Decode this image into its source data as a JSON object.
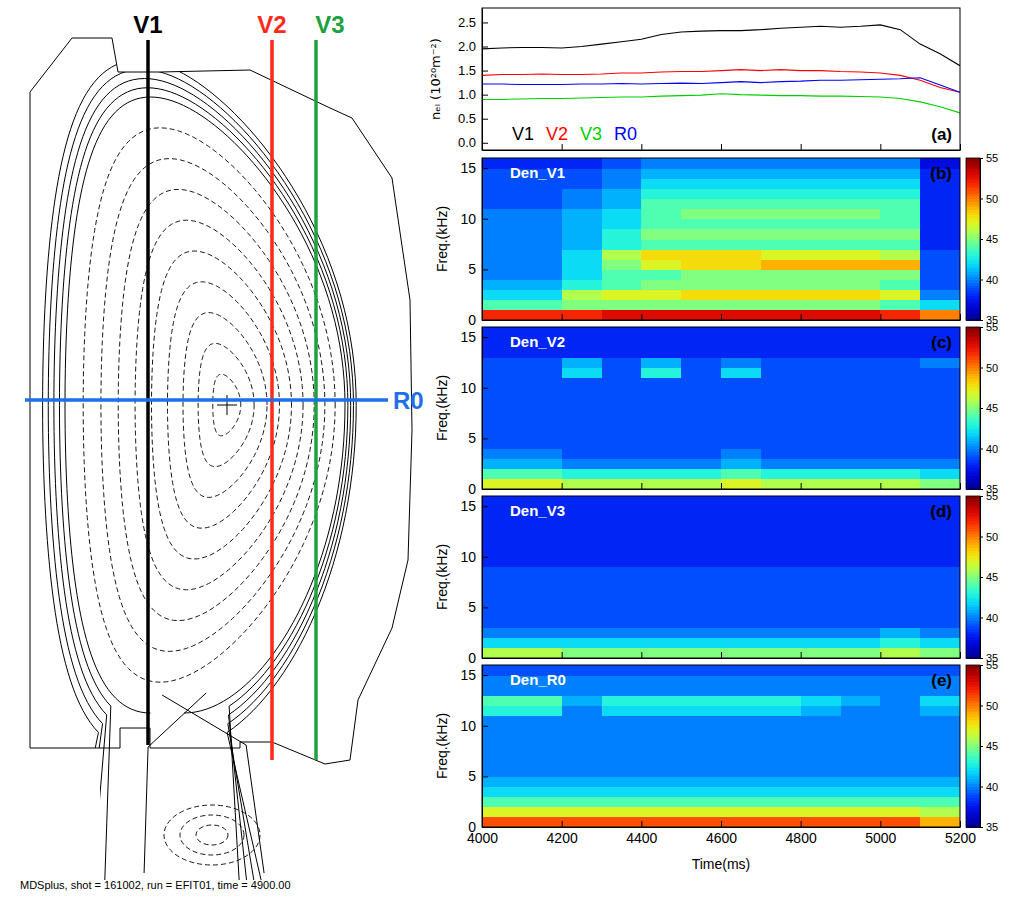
{
  "diagram": {
    "chords": [
      {
        "label": "V1",
        "color": "#000000"
      },
      {
        "label": "V2",
        "color": "#ff2a1a"
      },
      {
        "label": "V3",
        "color": "#20a040"
      },
      {
        "label": "R0",
        "color": "#1f6fe8"
      }
    ],
    "caption": "MDSplus, shot = 161002, run = EFIT01, time = 4900.00"
  },
  "chart_data": [
    {
      "type": "line",
      "panel_label": "(a)",
      "y_label": "nₑₗ (10²⁰m⁻²)",
      "x": [
        4000,
        4050,
        4100,
        4150,
        4200,
        4250,
        4300,
        4350,
        4400,
        4450,
        4500,
        4550,
        4600,
        4650,
        4700,
        4750,
        4800,
        4850,
        4900,
        4950,
        5000,
        5050,
        5100,
        5150,
        5200
      ],
      "xlim": [
        4000,
        5200
      ],
      "xticks": [
        4000,
        4200,
        4400,
        4600,
        4800,
        5000,
        5200
      ],
      "ylim": [
        -0.15,
        2.8
      ],
      "yticks": [
        {
          "value": 0,
          "label": "0.0"
        },
        0.5,
        {
          "value": 1,
          "label": "1.0"
        },
        1.5,
        {
          "value": 2,
          "label": "2.0"
        },
        2.5
      ],
      "tick_labels": "y",
      "legend": "lower left",
      "series": [
        {
          "name": "V1",
          "color": "#000000",
          "values": [
            1.95,
            1.97,
            1.98,
            1.98,
            1.97,
            2.0,
            2.05,
            2.1,
            2.15,
            2.25,
            2.3,
            2.32,
            2.33,
            2.33,
            2.35,
            2.38,
            2.4,
            2.42,
            2.4,
            2.42,
            2.45,
            2.35,
            2.05,
            1.85,
            1.6
          ]
        },
        {
          "name": "V2",
          "color": "#ff0000",
          "values": [
            1.4,
            1.42,
            1.42,
            1.43,
            1.42,
            1.42,
            1.43,
            1.45,
            1.45,
            1.47,
            1.48,
            1.48,
            1.5,
            1.52,
            1.5,
            1.52,
            1.5,
            1.5,
            1.48,
            1.47,
            1.45,
            1.4,
            1.3,
            1.15,
            1.05
          ]
        },
        {
          "name": "V3",
          "color": "#00d000",
          "values": [
            0.9,
            0.9,
            0.91,
            0.92,
            0.92,
            0.93,
            0.94,
            0.95,
            0.95,
            0.97,
            0.98,
            0.99,
            1.02,
            1.0,
            0.99,
            0.98,
            0.98,
            0.97,
            0.97,
            0.96,
            0.95,
            0.92,
            0.85,
            0.75,
            0.62
          ]
        },
        {
          "name": "R0",
          "color": "#0000ff",
          "values": [
            1.22,
            1.22,
            1.21,
            1.21,
            1.21,
            1.22,
            1.22,
            1.23,
            1.22,
            1.23,
            1.24,
            1.23,
            1.25,
            1.27,
            1.25,
            1.27,
            1.28,
            1.3,
            1.3,
            1.31,
            1.32,
            1.33,
            1.35,
            1.2,
            1.05
          ]
        }
      ]
    },
    {
      "type": "heatmap",
      "title": "Den_V1",
      "panel_label": "(b)",
      "y_label": "Freq.(kHz)",
      "x_bins": [
        4000,
        4100,
        4200,
        4300,
        4400,
        4500,
        4600,
        4700,
        4800,
        4900,
        5000,
        5100,
        5200
      ],
      "y_bins": [
        0,
        1,
        2,
        3,
        4,
        5,
        6,
        7,
        8,
        9,
        10,
        11,
        12,
        13,
        14,
        15,
        16
      ],
      "xlim": [
        4000,
        5200
      ],
      "xticks": [
        4000,
        4200,
        4400,
        4600,
        4800,
        5000,
        5200
      ],
      "ylim": [
        0,
        16
      ],
      "yticks": [
        0,
        5,
        10,
        15
      ],
      "tick_labels": "y",
      "color_range": [
        35,
        55
      ],
      "color_ticks": [
        35,
        40,
        45,
        50,
        55
      ],
      "values": [
        [
          52,
          52,
          52,
          53,
          53,
          53,
          53,
          53,
          53,
          53,
          52,
          50
        ],
        [
          44,
          44,
          45,
          45,
          45,
          45,
          45,
          45,
          45,
          45,
          44,
          42
        ],
        [
          42,
          42,
          46,
          47,
          47,
          48,
          48,
          48,
          48,
          48,
          47,
          40
        ],
        [
          41,
          41,
          43,
          44,
          45,
          45,
          45,
          45,
          45,
          45,
          44,
          39
        ],
        [
          40,
          40,
          42,
          44,
          44,
          45,
          45,
          45,
          45,
          45,
          45,
          39
        ],
        [
          40,
          40,
          42,
          45,
          47,
          48,
          48,
          49,
          49,
          49,
          49,
          39
        ],
        [
          40,
          40,
          42,
          46,
          48,
          48,
          48,
          47,
          47,
          47,
          46,
          39
        ],
        [
          40,
          40,
          41,
          43,
          44,
          44,
          44,
          44,
          44,
          44,
          44,
          38
        ],
        [
          40,
          40,
          41,
          43,
          45,
          45,
          45,
          45,
          45,
          45,
          45,
          38
        ],
        [
          40,
          40,
          41,
          42,
          44,
          44,
          44,
          44,
          44,
          44,
          44,
          38
        ],
        [
          40,
          40,
          41,
          42,
          44,
          45,
          45,
          45,
          45,
          45,
          44,
          38
        ],
        [
          39,
          39,
          40,
          41,
          44,
          44,
          44,
          44,
          44,
          44,
          44,
          38
        ],
        [
          39,
          39,
          40,
          41,
          43,
          43,
          43,
          43,
          43,
          43,
          43,
          38
        ],
        [
          39,
          39,
          39,
          40,
          42,
          42,
          42,
          42,
          42,
          42,
          42,
          38
        ],
        [
          39,
          39,
          39,
          40,
          41,
          41,
          41,
          41,
          41,
          41,
          41,
          38
        ],
        [
          38,
          38,
          38,
          39,
          40,
          40,
          40,
          40,
          40,
          40,
          40,
          37
        ]
      ]
    },
    {
      "type": "heatmap",
      "title": "Den_V2",
      "panel_label": "(c)",
      "y_label": "Freq.(kHz)",
      "x_bins": [
        4000,
        4100,
        4200,
        4300,
        4400,
        4500,
        4600,
        4700,
        4800,
        4900,
        5000,
        5100,
        5200
      ],
      "y_bins": [
        0,
        1,
        2,
        3,
        4,
        5,
        6,
        7,
        8,
        9,
        10,
        11,
        12,
        13,
        14,
        15,
        16
      ],
      "xlim": [
        4000,
        5200
      ],
      "xticks": [
        4000,
        4200,
        4400,
        4600,
        4800,
        5000,
        5200
      ],
      "ylim": [
        0,
        16
      ],
      "yticks": [
        0,
        5,
        10,
        15
      ],
      "tick_labels": "y",
      "color_range": [
        35,
        55
      ],
      "color_ticks": [
        35,
        40,
        45,
        50,
        55
      ],
      "values": [
        [
          47,
          47,
          46,
          46,
          46,
          46,
          47,
          46,
          46,
          46,
          46,
          45
        ],
        [
          44,
          44,
          43,
          43,
          43,
          43,
          44,
          43,
          43,
          43,
          43,
          42
        ],
        [
          41,
          41,
          40,
          40,
          40,
          40,
          41,
          40,
          40,
          40,
          40,
          40
        ],
        [
          40,
          40,
          39,
          39,
          39,
          39,
          40,
          39,
          39,
          39,
          39,
          39
        ],
        [
          39,
          39,
          39,
          39,
          39,
          39,
          39,
          39,
          39,
          39,
          39,
          39
        ],
        [
          39,
          39,
          39,
          39,
          39,
          39,
          39,
          39,
          39,
          39,
          39,
          39
        ],
        [
          39,
          39,
          39,
          39,
          39,
          39,
          39,
          39,
          39,
          39,
          39,
          39
        ],
        [
          39,
          39,
          39,
          39,
          39,
          39,
          39,
          39,
          39,
          39,
          39,
          39
        ],
        [
          39,
          39,
          39,
          39,
          39,
          39,
          39,
          39,
          39,
          39,
          39,
          39
        ],
        [
          39,
          39,
          39,
          39,
          39,
          39,
          39,
          39,
          39,
          39,
          39,
          39
        ],
        [
          39,
          39,
          39,
          39,
          39,
          39,
          39,
          39,
          39,
          39,
          39,
          39
        ],
        [
          39,
          39,
          42,
          39,
          43,
          39,
          42,
          39,
          39,
          39,
          39,
          39
        ],
        [
          39,
          39,
          41,
          39,
          41,
          39,
          40,
          39,
          39,
          39,
          39,
          40
        ],
        [
          38,
          38,
          38,
          38,
          38,
          38,
          38,
          38,
          38,
          38,
          38,
          38
        ],
        [
          38,
          38,
          38,
          38,
          38,
          38,
          38,
          38,
          38,
          38,
          38,
          38
        ],
        [
          38,
          38,
          38,
          38,
          38,
          38,
          38,
          38,
          38,
          38,
          38,
          38
        ]
      ]
    },
    {
      "type": "heatmap",
      "title": "Den_V3",
      "panel_label": "(d)",
      "y_label": "Freq.(kHz)",
      "x_bins": [
        4000,
        4100,
        4200,
        4300,
        4400,
        4500,
        4600,
        4700,
        4800,
        4900,
        5000,
        5100,
        5200
      ],
      "y_bins": [
        0,
        1,
        2,
        3,
        4,
        5,
        6,
        7,
        8,
        9,
        10,
        11,
        12,
        13,
        14,
        15,
        16
      ],
      "xlim": [
        4000,
        5200
      ],
      "xticks": [
        4000,
        4200,
        4400,
        4600,
        4800,
        5000,
        5200
      ],
      "ylim": [
        0,
        16
      ],
      "yticks": [
        0,
        5,
        10,
        15
      ],
      "tick_labels": "y",
      "color_range": [
        35,
        55
      ],
      "color_ticks": [
        35,
        40,
        45,
        50,
        55
      ],
      "values": [
        [
          46,
          46,
          45,
          45,
          45,
          45,
          45,
          45,
          45,
          45,
          46,
          45
        ],
        [
          42,
          42,
          42,
          42,
          42,
          42,
          42,
          42,
          42,
          42,
          43,
          42
        ],
        [
          40,
          40,
          40,
          40,
          40,
          40,
          40,
          40,
          40,
          40,
          41,
          40
        ],
        [
          39,
          39,
          39,
          39,
          39,
          39,
          39,
          39,
          39,
          39,
          39,
          39
        ],
        [
          39,
          39,
          39,
          39,
          39,
          39,
          39,
          39,
          39,
          39,
          39,
          39
        ],
        [
          39,
          39,
          39,
          39,
          39,
          39,
          39,
          39,
          39,
          39,
          39,
          39
        ],
        [
          39,
          39,
          39,
          39,
          39,
          39,
          39,
          39,
          39,
          39,
          39,
          39
        ],
        [
          39,
          39,
          39,
          39,
          39,
          39,
          39,
          39,
          39,
          39,
          39,
          39
        ],
        [
          39,
          39,
          39,
          39,
          39,
          39,
          39,
          39,
          39,
          39,
          39,
          39
        ],
        [
          38,
          38,
          38,
          38,
          38,
          38,
          38,
          38,
          38,
          38,
          38,
          38
        ],
        [
          38,
          38,
          38,
          38,
          38,
          38,
          38,
          38,
          38,
          38,
          38,
          38
        ],
        [
          38,
          38,
          38,
          38,
          38,
          38,
          38,
          38,
          38,
          38,
          38,
          38
        ],
        [
          38,
          38,
          38,
          38,
          38,
          38,
          38,
          38,
          38,
          38,
          38,
          38
        ],
        [
          38,
          38,
          38,
          38,
          38,
          38,
          38,
          38,
          38,
          38,
          38,
          38
        ],
        [
          38,
          38,
          38,
          38,
          38,
          38,
          38,
          38,
          38,
          38,
          38,
          38
        ],
        [
          38,
          38,
          38,
          38,
          38,
          38,
          38,
          38,
          38,
          38,
          38,
          38
        ]
      ]
    },
    {
      "type": "heatmap",
      "title": "Den_R0",
      "panel_label": "(e)",
      "y_label": "Freq.(kHz)",
      "x_label": "Time(ms)",
      "x_bins": [
        4000,
        4100,
        4200,
        4300,
        4400,
        4500,
        4600,
        4700,
        4800,
        4900,
        5000,
        5100,
        5200
      ],
      "y_bins": [
        0,
        1,
        2,
        3,
        4,
        5,
        6,
        7,
        8,
        9,
        10,
        11,
        12,
        13,
        14,
        15,
        16
      ],
      "xlim": [
        4000,
        5200
      ],
      "xticks": [
        4000,
        4200,
        4400,
        4600,
        4800,
        5000,
        5200
      ],
      "ylim": [
        0,
        16
      ],
      "yticks": [
        0,
        5,
        10,
        15
      ],
      "color_range": [
        35,
        55
      ],
      "color_ticks": [
        35,
        40,
        45,
        50,
        55
      ],
      "values": [
        [
          51,
          51,
          51,
          51,
          51,
          51,
          51,
          51,
          51,
          51,
          51,
          49
        ],
        [
          47,
          47,
          47,
          47,
          47,
          47,
          47,
          47,
          47,
          47,
          47,
          46
        ],
        [
          44,
          44,
          44,
          44,
          44,
          44,
          44,
          44,
          44,
          44,
          44,
          44
        ],
        [
          42,
          42,
          42,
          42,
          42,
          42,
          42,
          42,
          42,
          42,
          42,
          42
        ],
        [
          41,
          41,
          41,
          41,
          41,
          41,
          41,
          41,
          41,
          41,
          41,
          41
        ],
        [
          40,
          40,
          40,
          40,
          40,
          40,
          40,
          40,
          40,
          40,
          40,
          40
        ],
        [
          40,
          40,
          40,
          40,
          40,
          40,
          40,
          40,
          40,
          40,
          40,
          40
        ],
        [
          40,
          40,
          40,
          40,
          40,
          40,
          40,
          40,
          40,
          40,
          40,
          40
        ],
        [
          40,
          40,
          40,
          40,
          40,
          40,
          40,
          40,
          40,
          40,
          40,
          40
        ],
        [
          40,
          40,
          40,
          40,
          40,
          40,
          40,
          40,
          40,
          40,
          40,
          40
        ],
        [
          40,
          40,
          40,
          40,
          40,
          40,
          40,
          40,
          40,
          40,
          40,
          40
        ],
        [
          43,
          43,
          40,
          42,
          42,
          42,
          42,
          42,
          41,
          40,
          40,
          41
        ],
        [
          44,
          44,
          41,
          43,
          43,
          43,
          43,
          43,
          42,
          41,
          40,
          42
        ],
        [
          40,
          40,
          40,
          40,
          40,
          40,
          40,
          40,
          40,
          40,
          40,
          40
        ],
        [
          40,
          40,
          40,
          40,
          40,
          40,
          40,
          40,
          40,
          40,
          40,
          40
        ],
        [
          39,
          39,
          39,
          39,
          39,
          39,
          39,
          39,
          39,
          39,
          39,
          39
        ]
      ]
    }
  ]
}
